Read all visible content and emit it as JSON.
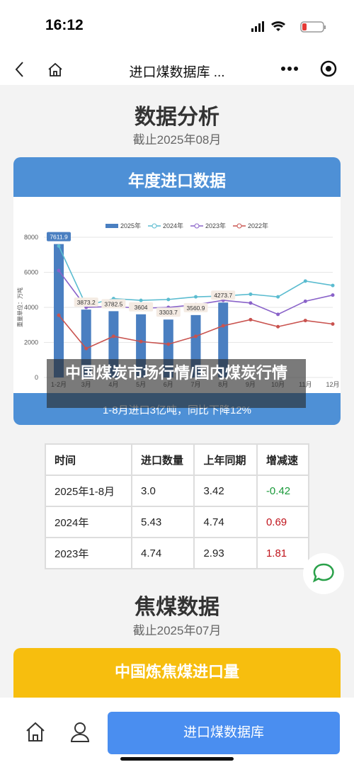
{
  "status_bar": {
    "time": "16:12"
  },
  "nav": {
    "title": "进口煤数据库 ..."
  },
  "section1": {
    "title": "数据分析",
    "subtitle": "截止2025年08月",
    "card_title": "年度进口数据",
    "summary": "1-8月进口3亿吨，同比下降12%"
  },
  "chart_data": {
    "type": "bar_line",
    "y_label": "重量单位：万吨",
    "categories": [
      "1-2月",
      "3月",
      "4月",
      "5月",
      "6月",
      "7月",
      "8月",
      "9月",
      "10月",
      "11月",
      "12月"
    ],
    "ylim": [
      0,
      8000
    ],
    "yticks": [
      0,
      2000,
      4000,
      6000,
      8000
    ],
    "grid": true,
    "legend": "top",
    "series": [
      {
        "name": "2025年",
        "kind": "bar",
        "color": "#4a7fc1",
        "values": [
          7611.9,
          3873.2,
          3782.5,
          3604,
          3303.7,
          3560.9,
          4273.7,
          null,
          null,
          null,
          null
        ]
      },
      {
        "name": "2024年",
        "kind": "line",
        "color": "#5bbcd0",
        "values": [
          7500,
          4100,
          4500,
          4400,
          4450,
          4600,
          4650,
          4750,
          4600,
          5500,
          5250
        ]
      },
      {
        "name": "2023年",
        "kind": "line",
        "color": "#8a63c9",
        "values": [
          6100,
          4000,
          4050,
          3950,
          4000,
          4150,
          4400,
          4250,
          3600,
          4350,
          4700
        ]
      },
      {
        "name": "2022年",
        "kind": "line",
        "color": "#c9534f",
        "values": [
          3550,
          1650,
          2350,
          2050,
          1900,
          2350,
          2950,
          3300,
          2900,
          3250,
          3050
        ]
      }
    ]
  },
  "overlay": {
    "text": "中国煤炭市场行情/国内煤炭行情"
  },
  "table": {
    "header": [
      "时间",
      "进口数量",
      "上年同期",
      "增减速"
    ],
    "rows": [
      [
        "2025年1-8月",
        "3.0",
        "3.42",
        "-0.42"
      ],
      [
        "2024年",
        "5.43",
        "4.74",
        "0.69"
      ],
      [
        "2023年",
        "4.74",
        "2.93",
        "1.81"
      ]
    ]
  },
  "section2": {
    "title": "焦煤数据",
    "subtitle": "截止2025年07月",
    "card_title": "中国炼焦煤进口量"
  },
  "bottom_bar": {
    "button": "进口煤数据库"
  }
}
